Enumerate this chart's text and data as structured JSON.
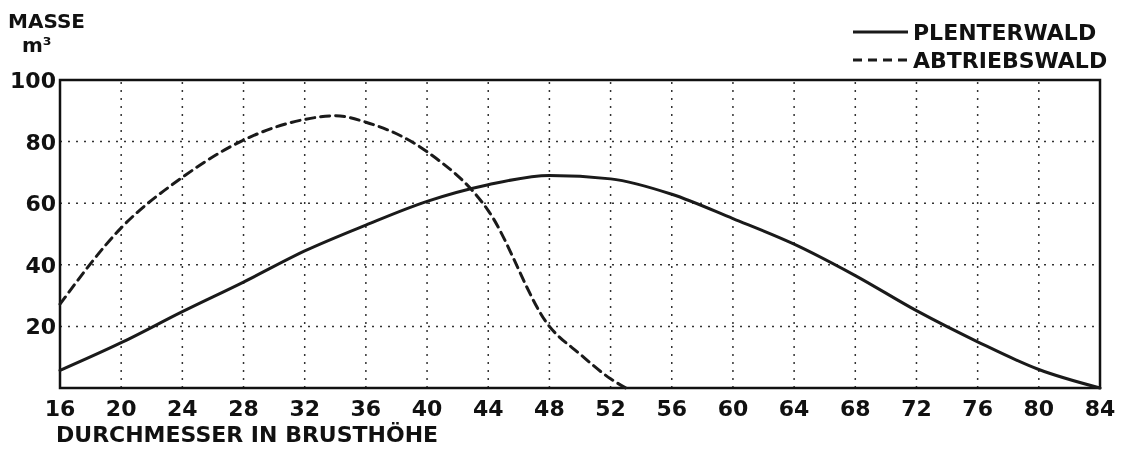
{
  "chart_data": {
    "type": "line",
    "xlabel": "DURCHMESSER IN BRUSTHÖHE",
    "ylabel": "MASSE\nm³",
    "xlim": [
      16,
      84
    ],
    "xticks": [
      16,
      20,
      24,
      28,
      32,
      36,
      40,
      44,
      48,
      52,
      56,
      60,
      64,
      68,
      72,
      76,
      80,
      84
    ],
    "ylim": [
      0,
      100
    ],
    "yticks": [
      20,
      40,
      60,
      80,
      100
    ],
    "grid": true,
    "legend": "top right",
    "series": [
      {
        "name": "PLENTERWALD",
        "color": "#1a1a1a",
        "line_style": "solid",
        "x": [
          16,
          20,
          24,
          28,
          32,
          36,
          40,
          44,
          48,
          52,
          56,
          60,
          64,
          68,
          72,
          76,
          80,
          84
        ],
        "values": [
          5.7,
          14.7,
          24.8,
          34.4,
          44.5,
          52.9,
          60.6,
          66,
          69,
          67.9,
          62.9,
          55,
          46.7,
          36.5,
          25.1,
          15,
          6,
          0
        ]
      },
      {
        "name": "ABTRIEBSWALD",
        "color": "#1a1a1a",
        "line_style": "dashed",
        "x": [
          16,
          20,
          24,
          28,
          32,
          34,
          36,
          40,
          44,
          48,
          50,
          52,
          53
        ],
        "values": [
          27.2,
          52,
          68.4,
          80.5,
          87.2,
          88.4,
          86.3,
          76.7,
          57.6,
          20,
          11,
          3,
          0
        ]
      }
    ]
  }
}
